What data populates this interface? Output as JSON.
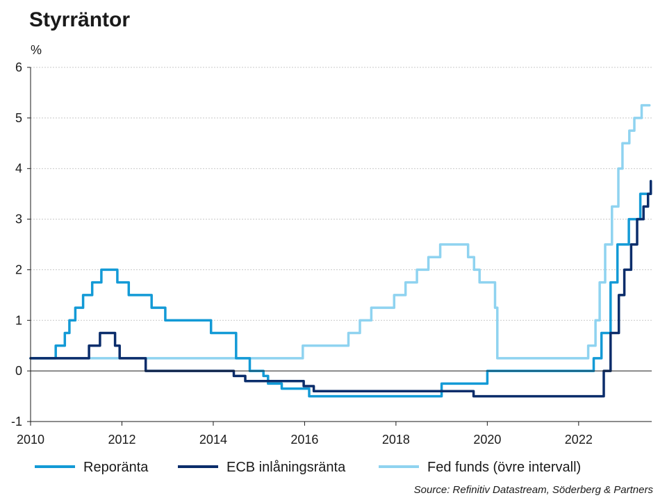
{
  "chart_data": {
    "type": "line",
    "title": "Styrräntor",
    "ylabel": "%",
    "xlabel": "",
    "xlim": [
      2010,
      2023.6
    ],
    "ylim": [
      -1,
      6
    ],
    "x_ticks": [
      "2010",
      "2012",
      "2014",
      "2016",
      "2018",
      "2020",
      "2022"
    ],
    "y_ticks": [
      "-1",
      "0",
      "1",
      "2",
      "3",
      "4",
      "5",
      "6"
    ],
    "grid": true,
    "legend_position": "bottom",
    "source": "Source: Refinitiv Datastream, Söderberg & Partners",
    "series": [
      {
        "name": "Reporänta",
        "color": "#139ad6",
        "points": [
          [
            2010.0,
            0.25
          ],
          [
            2010.5,
            0.25
          ],
          [
            2010.55,
            0.5
          ],
          [
            2010.75,
            0.75
          ],
          [
            2010.85,
            1.0
          ],
          [
            2010.98,
            1.25
          ],
          [
            2011.15,
            1.5
          ],
          [
            2011.35,
            1.75
          ],
          [
            2011.55,
            2.0
          ],
          [
            2011.9,
            1.75
          ],
          [
            2012.15,
            1.5
          ],
          [
            2012.65,
            1.25
          ],
          [
            2012.95,
            1.0
          ],
          [
            2013.95,
            0.75
          ],
          [
            2014.5,
            0.25
          ],
          [
            2014.8,
            0.0
          ],
          [
            2015.1,
            -0.1
          ],
          [
            2015.2,
            -0.25
          ],
          [
            2015.5,
            -0.35
          ],
          [
            2016.1,
            -0.5
          ],
          [
            2019.0,
            -0.25
          ],
          [
            2020.0,
            0.0
          ],
          [
            2022.33,
            0.25
          ],
          [
            2022.5,
            0.75
          ],
          [
            2022.7,
            1.75
          ],
          [
            2022.85,
            2.5
          ],
          [
            2023.1,
            3.0
          ],
          [
            2023.35,
            3.5
          ],
          [
            2023.58,
            3.75
          ]
        ]
      },
      {
        "name": "ECB inlåningsränta",
        "color": "#0b2d6b",
        "points": [
          [
            2010.0,
            0.25
          ],
          [
            2011.28,
            0.5
          ],
          [
            2011.52,
            0.75
          ],
          [
            2011.85,
            0.5
          ],
          [
            2011.95,
            0.25
          ],
          [
            2012.52,
            0.0
          ],
          [
            2014.45,
            -0.1
          ],
          [
            2014.7,
            -0.2
          ],
          [
            2015.98,
            -0.3
          ],
          [
            2016.2,
            -0.4
          ],
          [
            2019.7,
            -0.5
          ],
          [
            2022.55,
            0.0
          ],
          [
            2022.7,
            0.75
          ],
          [
            2022.88,
            1.5
          ],
          [
            2023.0,
            2.0
          ],
          [
            2023.15,
            2.5
          ],
          [
            2023.28,
            3.0
          ],
          [
            2023.42,
            3.25
          ],
          [
            2023.52,
            3.5
          ],
          [
            2023.58,
            3.75
          ]
        ]
      },
      {
        "name": "Fed funds (övre intervall)",
        "color": "#8fd3f0",
        "points": [
          [
            2010.0,
            0.25
          ],
          [
            2015.96,
            0.5
          ],
          [
            2016.96,
            0.75
          ],
          [
            2017.21,
            1.0
          ],
          [
            2017.46,
            1.25
          ],
          [
            2017.96,
            1.5
          ],
          [
            2018.21,
            1.75
          ],
          [
            2018.46,
            2.0
          ],
          [
            2018.71,
            2.25
          ],
          [
            2018.97,
            2.5
          ],
          [
            2019.58,
            2.25
          ],
          [
            2019.71,
            2.0
          ],
          [
            2019.83,
            1.75
          ],
          [
            2020.17,
            1.25
          ],
          [
            2020.22,
            0.25
          ],
          [
            2022.21,
            0.5
          ],
          [
            2022.37,
            1.0
          ],
          [
            2022.46,
            1.75
          ],
          [
            2022.58,
            2.5
          ],
          [
            2022.73,
            3.25
          ],
          [
            2022.87,
            4.0
          ],
          [
            2022.96,
            4.5
          ],
          [
            2023.11,
            4.75
          ],
          [
            2023.22,
            5.0
          ],
          [
            2023.38,
            5.25
          ],
          [
            2023.55,
            5.25
          ]
        ]
      }
    ]
  }
}
